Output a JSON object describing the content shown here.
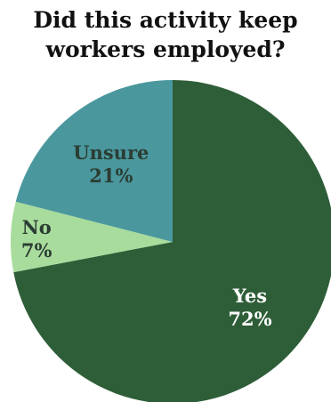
{
  "chart_data": {
    "type": "pie",
    "title_lines": [
      "Did this activity keep",
      "workers employed?"
    ],
    "slices": [
      {
        "label": "Yes",
        "value": 72,
        "value_label": "72%",
        "color": "#2e5e38",
        "text_color": "#ffffff"
      },
      {
        "label": "No",
        "value": 7,
        "value_label": "7%",
        "color": "#a8dc9c",
        "text_color": "#2b3d33"
      },
      {
        "label": "Unsure",
        "value": 21,
        "value_label": "21%",
        "color": "#4a979e",
        "text_color": "#2b3d33"
      }
    ],
    "start_angle_deg": 0,
    "direction": "clockwise",
    "legend": "none"
  }
}
